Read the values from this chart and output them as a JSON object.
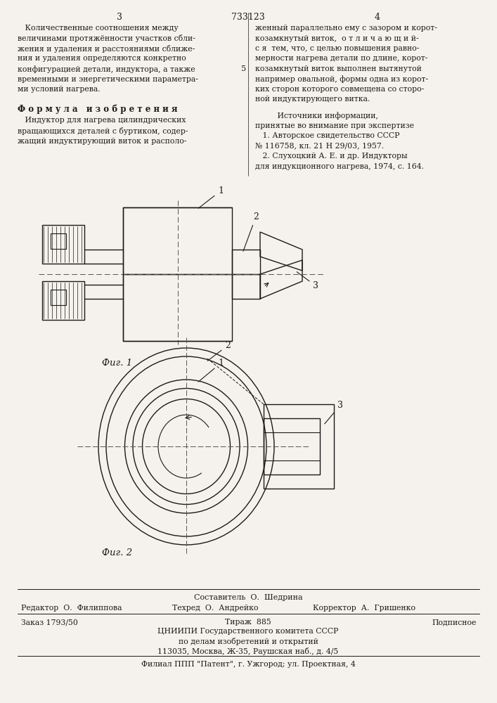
{
  "bg_color": "#f5f2ed",
  "text_color": "#1a1a1a",
  "page_num_left": "3",
  "page_num_center": "733123",
  "page_num_right": "4",
  "left_col_text": [
    "   Количественные соотношения между",
    "величинами протяжённости участков сбли-",
    "жения и удаления и расстояниями сближе-",
    "ния и удаления определяются конкретно",
    "конфигурацией детали, индуктора, а также",
    "временными и энергетическими параметра-",
    "ми условий нагрева."
  ],
  "formula_heading": "Ф о р м у л а   и з о б р е т е н и я",
  "formula_text": [
    "   Индуктор для нагрева цилиндрических",
    "вращающихся деталей с буртиком, содер-",
    "жащий индуктирующий виток и располо-"
  ],
  "right_col_text": [
    "женный параллельно ему с зазором и корот-",
    "козамкнутый виток,  о т л и ч а ю щ и й-",
    "с я  тем, что, с целью повышения равно-",
    "мерности нагрева детали по длине, корот-",
    "козамкнутый виток выполнен вытянутой",
    "например овальной, формы одна из корот-",
    "ких сторон которого совмещена со сторо-",
    "ной индуктирующего витка."
  ],
  "sources_heading": "         Источники информации,",
  "sources_text": [
    "принятые во внимание при экспертизе",
    "   1. Авторское свидетельство СССР",
    "№ 116758, кл. 21 Н 29/03, 1957.",
    "   2. Слухоцкий А. Е. и др. Индукторы",
    "для индукционного нагрева, 1974, с. 164."
  ],
  "fig1_label": "Фиг. 1",
  "fig2_label": "Фиг. 2",
  "line_number": "5",
  "footer_composer": "Составитель  О.  Шедрина",
  "footer_editor": "Редактор  О.  Филиппова",
  "footer_tech": "Техред  О.  Андрейко",
  "footer_corrector": "Корректор  А.  Гришенко",
  "footer_order": "Заказ 1793/50",
  "footer_tirage": "Тираж  885",
  "footer_podpisnoe": "Подписное",
  "footer_tsniipi": "ЦНИИПИ Государственного комитета СССР",
  "footer_po_delam": "по делам изобретений и открытий",
  "footer_address": "113035, Москва, Ж-35, Раушская наб., д. 4/5",
  "footer_filial": "Филиал ППП \"Патент\", г. Ужгород; ул. Проектная, 4"
}
